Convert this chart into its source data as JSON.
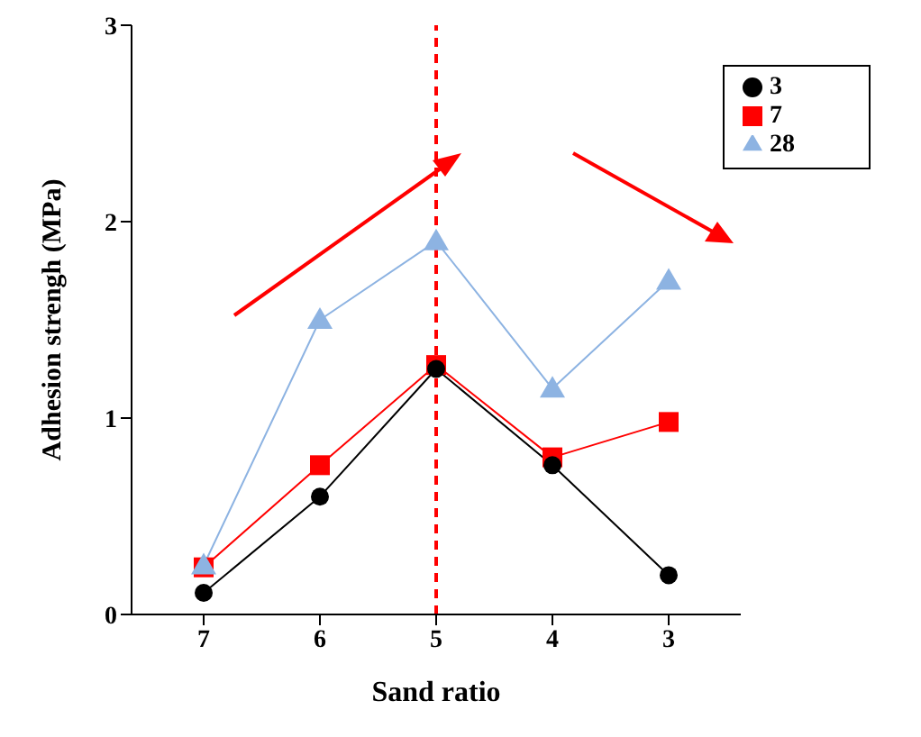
{
  "chart_data": {
    "type": "line",
    "xlabel": "Sand ratio",
    "ylabel": "Adhesion strengh (MPa)",
    "categories": [
      "7",
      "6",
      "5",
      "4",
      "3"
    ],
    "series": [
      {
        "name": "3",
        "color": "#000000",
        "marker": "circle",
        "values": [
          0.11,
          0.6,
          1.25,
          0.76,
          0.2
        ]
      },
      {
        "name": "7",
        "color": "#ff0000",
        "marker": "square",
        "values": [
          0.24,
          0.76,
          1.27,
          0.8,
          0.98
        ]
      },
      {
        "name": "28",
        "color": "#8db3e2",
        "marker": "triangle",
        "values": [
          0.25,
          1.5,
          1.9,
          1.15,
          1.7
        ]
      }
    ],
    "ylim": [
      0,
      3
    ],
    "yticks": [
      0,
      1,
      2,
      3
    ],
    "grid": false,
    "legend": "top right",
    "ref_lines": [
      {
        "axis": "x",
        "value": "5",
        "color": "#ff0000",
        "line_style": "dashed"
      }
    ]
  }
}
